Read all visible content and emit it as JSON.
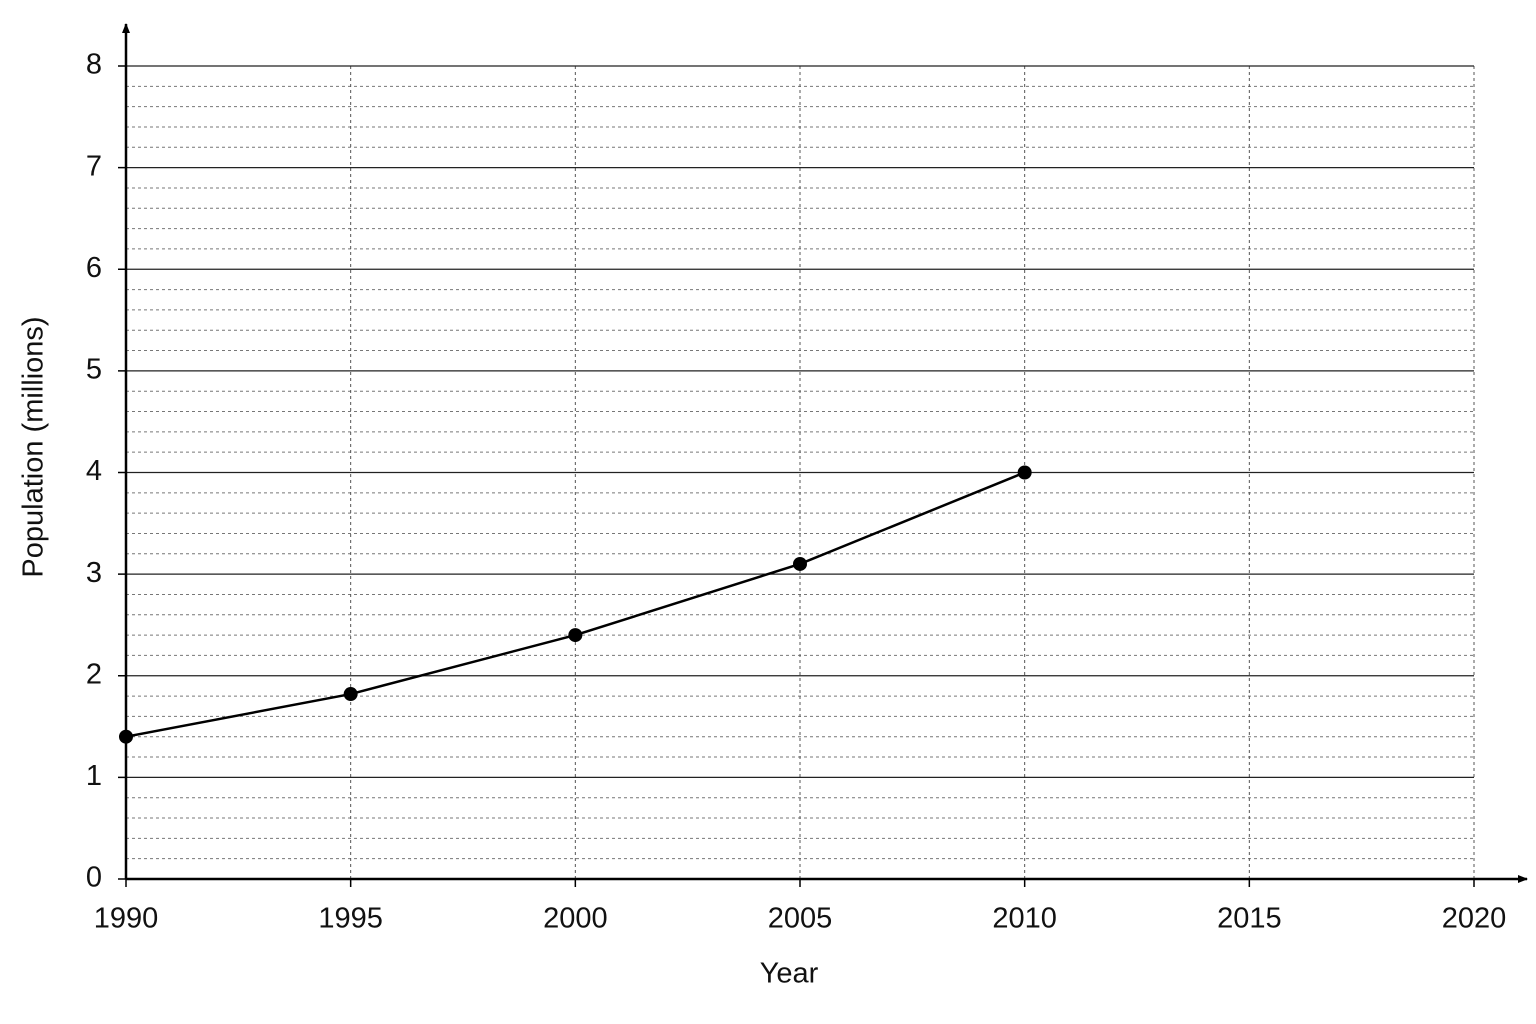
{
  "chart_data": {
    "type": "line",
    "x_label": "Year",
    "y_label": "Population (millions)",
    "x": [
      1990,
      1995,
      2000,
      2005,
      2010
    ],
    "values": [
      1.4,
      1.82,
      2.4,
      3.1,
      4.0
    ],
    "color": "#000000",
    "xlim": [
      1990,
      2020
    ],
    "xticks": [
      1990,
      1995,
      2000,
      2005,
      2010,
      2015,
      2020
    ],
    "ylim": [
      0,
      8
    ],
    "yticks": [
      0,
      1,
      2,
      3,
      4,
      5,
      6,
      7,
      8
    ],
    "yminorticks": [
      0.2,
      0.4,
      0.6,
      0.8,
      1.2,
      1.4,
      1.6,
      1.8,
      2.2,
      2.4,
      2.6,
      2.8,
      3.2,
      3.4,
      3.6,
      3.8,
      4.2,
      4.4,
      4.6,
      4.8,
      5.2,
      5.4,
      5.6,
      5.8,
      6.2,
      6.4,
      6.6,
      6.8,
      7.2,
      7.4,
      7.6,
      7.8
    ],
    "grid": true
  }
}
